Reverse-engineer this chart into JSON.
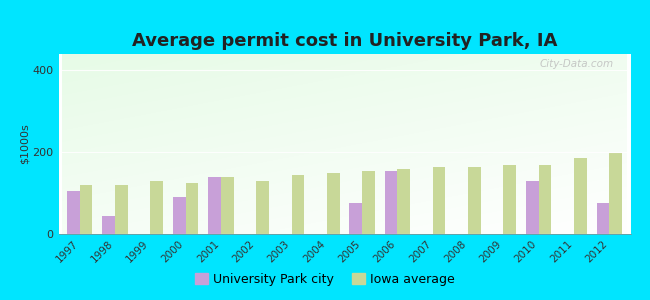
{
  "title": "Average permit cost in University Park, IA",
  "ylabel": "$1000s",
  "years": [
    1997,
    1998,
    1999,
    2000,
    2001,
    2002,
    2003,
    2004,
    2005,
    2006,
    2007,
    2008,
    2009,
    2010,
    2011,
    2012
  ],
  "city_values": [
    105,
    45,
    null,
    90,
    140,
    null,
    null,
    null,
    75,
    155,
    null,
    null,
    null,
    130,
    null,
    75
  ],
  "iowa_values": [
    120,
    120,
    130,
    125,
    140,
    130,
    145,
    150,
    155,
    160,
    165,
    165,
    168,
    168,
    185,
    198
  ],
  "city_color": "#c8a0d8",
  "iowa_color": "#c8d898",
  "ylim": [
    0,
    440
  ],
  "yticks": [
    0,
    200,
    400
  ],
  "outer_bg": "#00e5ff",
  "bar_width": 0.36,
  "city_label": "University Park city",
  "iowa_label": "Iowa average",
  "title_fontsize": 13,
  "watermark": "City-Data.com"
}
